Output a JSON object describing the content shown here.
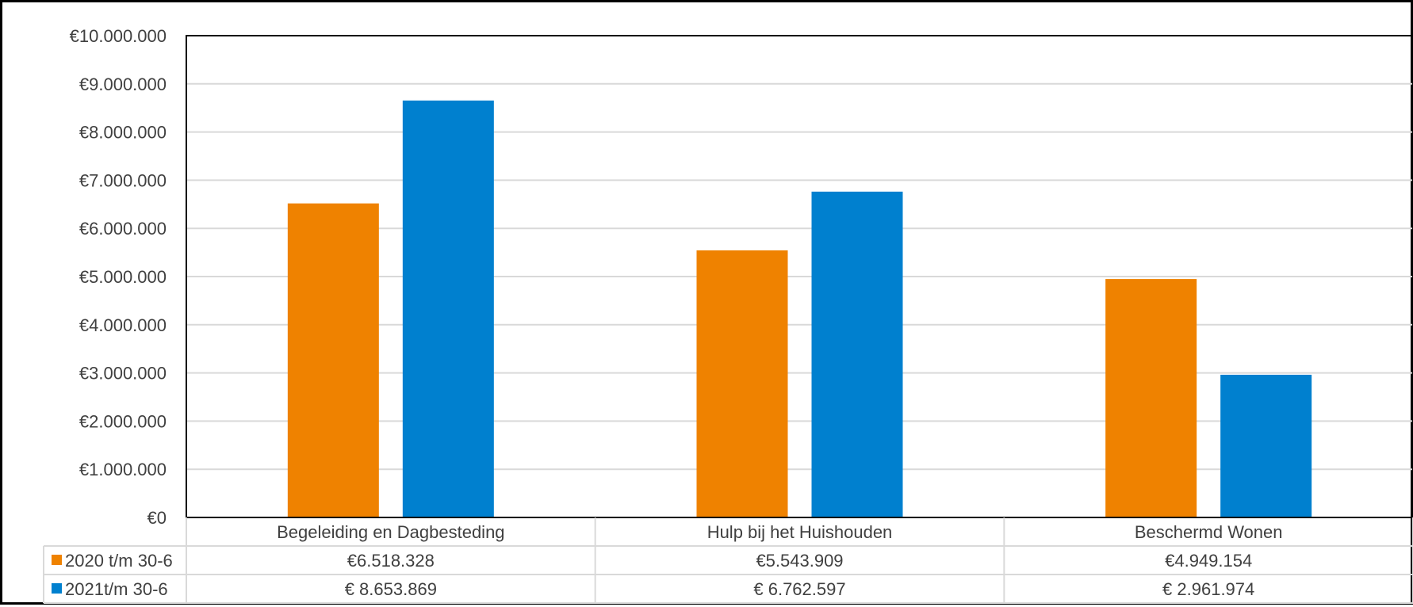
{
  "chart_data": {
    "type": "bar",
    "categories": [
      "Begeleiding en Dagbesteding",
      "Hulp bij het Huishouden",
      "Beschermd Wonen"
    ],
    "series": [
      {
        "name": "2020 t/m 30-6",
        "values": [
          6518328,
          5543909,
          4949154
        ],
        "value_labels": [
          "€6.518.328",
          "€5.543.909",
          "€4.949.154"
        ],
        "color": "#EF8200"
      },
      {
        "name": "2021t/m 30-6",
        "values": [
          8653869,
          6762597,
          2961974
        ],
        "value_labels": [
          "€ 8.653.869",
          "€ 6.762.597",
          "€ 2.961.974"
        ],
        "color": "#0080CF"
      }
    ],
    "ylim": [
      0,
      10000000
    ],
    "y_ticks": [
      0,
      1000000,
      2000000,
      3000000,
      4000000,
      5000000,
      6000000,
      7000000,
      8000000,
      9000000,
      10000000
    ],
    "y_tick_labels": [
      "€0",
      "€1.000.000",
      "€2.000.000",
      "€3.000.000",
      "€4.000.000",
      "€5.000.000",
      "€6.000.000",
      "€7.000.000",
      "€8.000.000",
      "€9.000.000",
      "€10.000.000"
    ],
    "grid": true,
    "legend": "data-table",
    "colors": {
      "gridline": "#D9D9D9",
      "axis": "#000000",
      "text": "#404040",
      "table_border": "#D9D9D9"
    }
  }
}
